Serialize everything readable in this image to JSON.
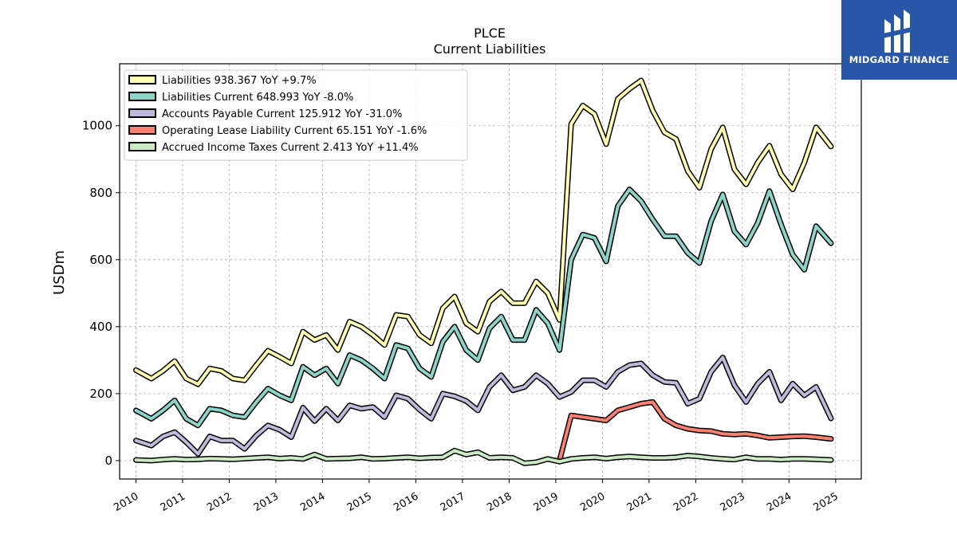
{
  "brand": {
    "name": "MIDGARD FINANCE",
    "color": "#2a56a8"
  },
  "chart_data": {
    "type": "line",
    "title": "PLCE",
    "subtitle": "Current  Liabilities",
    "ylabel": "USDm",
    "xlabel": "",
    "xlim": [
      2009.65,
      2025.55
    ],
    "ylim": [
      -55,
      1185
    ],
    "yticks": [
      0,
      200,
      400,
      600,
      800,
      1000
    ],
    "xticks": [
      2010,
      2011,
      2012,
      2013,
      2014,
      2015,
      2016,
      2017,
      2018,
      2019,
      2020,
      2021,
      2022,
      2023,
      2024,
      2025
    ],
    "grid": true,
    "legend_position": "top-left",
    "series": [
      {
        "name": "Liabilities  938.367 YoY +9.7%",
        "color": "#ffffb3",
        "x": [
          2010.0,
          2010.33,
          2010.58,
          2010.83,
          2011.08,
          2011.33,
          2011.58,
          2011.83,
          2012.08,
          2012.33,
          2012.58,
          2012.83,
          2013.08,
          2013.33,
          2013.58,
          2013.83,
          2014.08,
          2014.33,
          2014.58,
          2014.83,
          2015.08,
          2015.33,
          2015.58,
          2015.83,
          2016.08,
          2016.33,
          2016.58,
          2016.83,
          2017.08,
          2017.33,
          2017.58,
          2017.83,
          2018.08,
          2018.33,
          2018.58,
          2018.83,
          2019.08,
          2019.33,
          2019.58,
          2019.83,
          2020.08,
          2020.33,
          2020.58,
          2020.83,
          2021.08,
          2021.33,
          2021.58,
          2021.83,
          2022.08,
          2022.33,
          2022.58,
          2022.83,
          2023.08,
          2023.33,
          2023.58,
          2023.83,
          2024.08,
          2024.33,
          2024.58,
          2024.9
        ],
        "values": [
          270,
          245,
          268,
          297,
          245,
          228,
          275,
          268,
          245,
          240,
          285,
          328,
          310,
          290,
          385,
          360,
          375,
          330,
          415,
          400,
          375,
          345,
          435,
          430,
          375,
          350,
          455,
          490,
          410,
          385,
          475,
          505,
          470,
          470,
          535,
          500,
          420,
          1005,
          1060,
          1035,
          945,
          1080,
          1110,
          1135,
          1045,
          980,
          960,
          865,
          815,
          930,
          995,
          870,
          825,
          890,
          940,
          855,
          810,
          890,
          995,
          938
        ]
      },
      {
        "name": "Liabilities Current  648.993 YoY -8.0%",
        "color": "#8dd3c7",
        "x": [
          2010.0,
          2010.33,
          2010.58,
          2010.83,
          2011.08,
          2011.33,
          2011.58,
          2011.83,
          2012.08,
          2012.33,
          2012.58,
          2012.83,
          2013.08,
          2013.33,
          2013.58,
          2013.83,
          2014.08,
          2014.33,
          2014.58,
          2014.83,
          2015.08,
          2015.33,
          2015.58,
          2015.83,
          2016.08,
          2016.33,
          2016.58,
          2016.83,
          2017.08,
          2017.33,
          2017.58,
          2017.83,
          2018.08,
          2018.33,
          2018.58,
          2018.83,
          2019.08,
          2019.33,
          2019.58,
          2019.83,
          2020.08,
          2020.33,
          2020.58,
          2020.83,
          2021.08,
          2021.33,
          2021.58,
          2021.83,
          2022.08,
          2022.33,
          2022.58,
          2022.83,
          2023.08,
          2023.33,
          2023.58,
          2023.83,
          2024.08,
          2024.33,
          2024.58,
          2024.9
        ],
        "values": [
          150,
          125,
          150,
          180,
          125,
          105,
          155,
          150,
          135,
          130,
          175,
          215,
          195,
          180,
          280,
          255,
          275,
          230,
          315,
          300,
          275,
          245,
          345,
          335,
          275,
          250,
          355,
          400,
          330,
          300,
          395,
          430,
          360,
          360,
          450,
          410,
          330,
          600,
          675,
          665,
          595,
          760,
          810,
          775,
          720,
          670,
          670,
          620,
          590,
          715,
          795,
          685,
          645,
          710,
          805,
          705,
          615,
          570,
          700,
          649
        ]
      },
      {
        "name": "Accounts Payable Current  125.912 YoY -31.0%",
        "color": "#bebada",
        "x": [
          2010.0,
          2010.33,
          2010.58,
          2010.83,
          2011.08,
          2011.33,
          2011.58,
          2011.83,
          2012.08,
          2012.33,
          2012.58,
          2012.83,
          2013.08,
          2013.33,
          2013.58,
          2013.83,
          2014.08,
          2014.33,
          2014.58,
          2014.83,
          2015.08,
          2015.33,
          2015.58,
          2015.83,
          2016.08,
          2016.33,
          2016.58,
          2016.83,
          2017.08,
          2017.33,
          2017.58,
          2017.83,
          2018.08,
          2018.33,
          2018.58,
          2018.83,
          2019.08,
          2019.33,
          2019.58,
          2019.83,
          2020.08,
          2020.33,
          2020.58,
          2020.83,
          2021.08,
          2021.33,
          2021.58,
          2021.83,
          2022.08,
          2022.33,
          2022.58,
          2022.83,
          2023.08,
          2023.33,
          2023.58,
          2023.83,
          2024.08,
          2024.33,
          2024.58,
          2024.9
        ],
        "values": [
          60,
          45,
          72,
          85,
          55,
          20,
          72,
          60,
          60,
          35,
          75,
          105,
          92,
          70,
          158,
          118,
          155,
          120,
          165,
          155,
          160,
          130,
          195,
          185,
          152,
          125,
          200,
          192,
          178,
          150,
          220,
          255,
          210,
          220,
          255,
          230,
          190,
          205,
          240,
          240,
          220,
          265,
          285,
          290,
          255,
          235,
          232,
          170,
          185,
          265,
          308,
          225,
          175,
          230,
          265,
          180,
          230,
          195,
          220,
          126
        ]
      },
      {
        "name": "Operating Lease Liability Current  65.151 YoY -1.6%",
        "color": "#fb8072",
        "x": [
          2019.08,
          2019.33,
          2019.58,
          2019.83,
          2020.08,
          2020.33,
          2020.58,
          2020.83,
          2021.08,
          2021.33,
          2021.58,
          2021.83,
          2022.08,
          2022.33,
          2022.58,
          2022.83,
          2023.08,
          2023.33,
          2023.58,
          2023.83,
          2024.08,
          2024.33,
          2024.58,
          2024.9
        ],
        "values": [
          0,
          135,
          130,
          125,
          120,
          150,
          160,
          170,
          175,
          125,
          105,
          95,
          90,
          88,
          80,
          78,
          80,
          75,
          68,
          70,
          72,
          73,
          70,
          65
        ]
      },
      {
        "name": "Accrued Income Taxes Current  2.413 YoY +11.4%",
        "color": "#ccebc5",
        "x": [
          2010.0,
          2010.33,
          2010.58,
          2010.83,
          2011.08,
          2011.33,
          2011.58,
          2011.83,
          2012.08,
          2012.33,
          2012.58,
          2012.83,
          2013.08,
          2013.33,
          2013.58,
          2013.83,
          2014.08,
          2014.33,
          2014.58,
          2014.83,
          2015.08,
          2015.33,
          2015.58,
          2015.83,
          2016.08,
          2016.33,
          2016.58,
          2016.83,
          2017.08,
          2017.33,
          2017.58,
          2017.83,
          2018.08,
          2018.33,
          2018.58,
          2018.83,
          2019.08,
          2019.33,
          2019.58,
          2019.83,
          2020.08,
          2020.33,
          2020.58,
          2020.83,
          2021.08,
          2021.33,
          2021.58,
          2021.83,
          2022.08,
          2022.33,
          2022.58,
          2022.83,
          2023.08,
          2023.33,
          2023.58,
          2023.83,
          2024.08,
          2024.33,
          2024.58,
          2024.9
        ],
        "values": [
          2,
          0,
          3,
          5,
          3,
          4,
          6,
          5,
          4,
          6,
          8,
          10,
          6,
          8,
          5,
          18,
          5,
          6,
          7,
          10,
          5,
          6,
          8,
          10,
          7,
          9,
          10,
          30,
          18,
          25,
          8,
          10,
          8,
          -8,
          -5,
          5,
          -3,
          5,
          8,
          10,
          6,
          10,
          12,
          10,
          8,
          8,
          10,
          15,
          12,
          8,
          5,
          3,
          10,
          5,
          5,
          3,
          5,
          5,
          4,
          2
        ]
      }
    ]
  }
}
